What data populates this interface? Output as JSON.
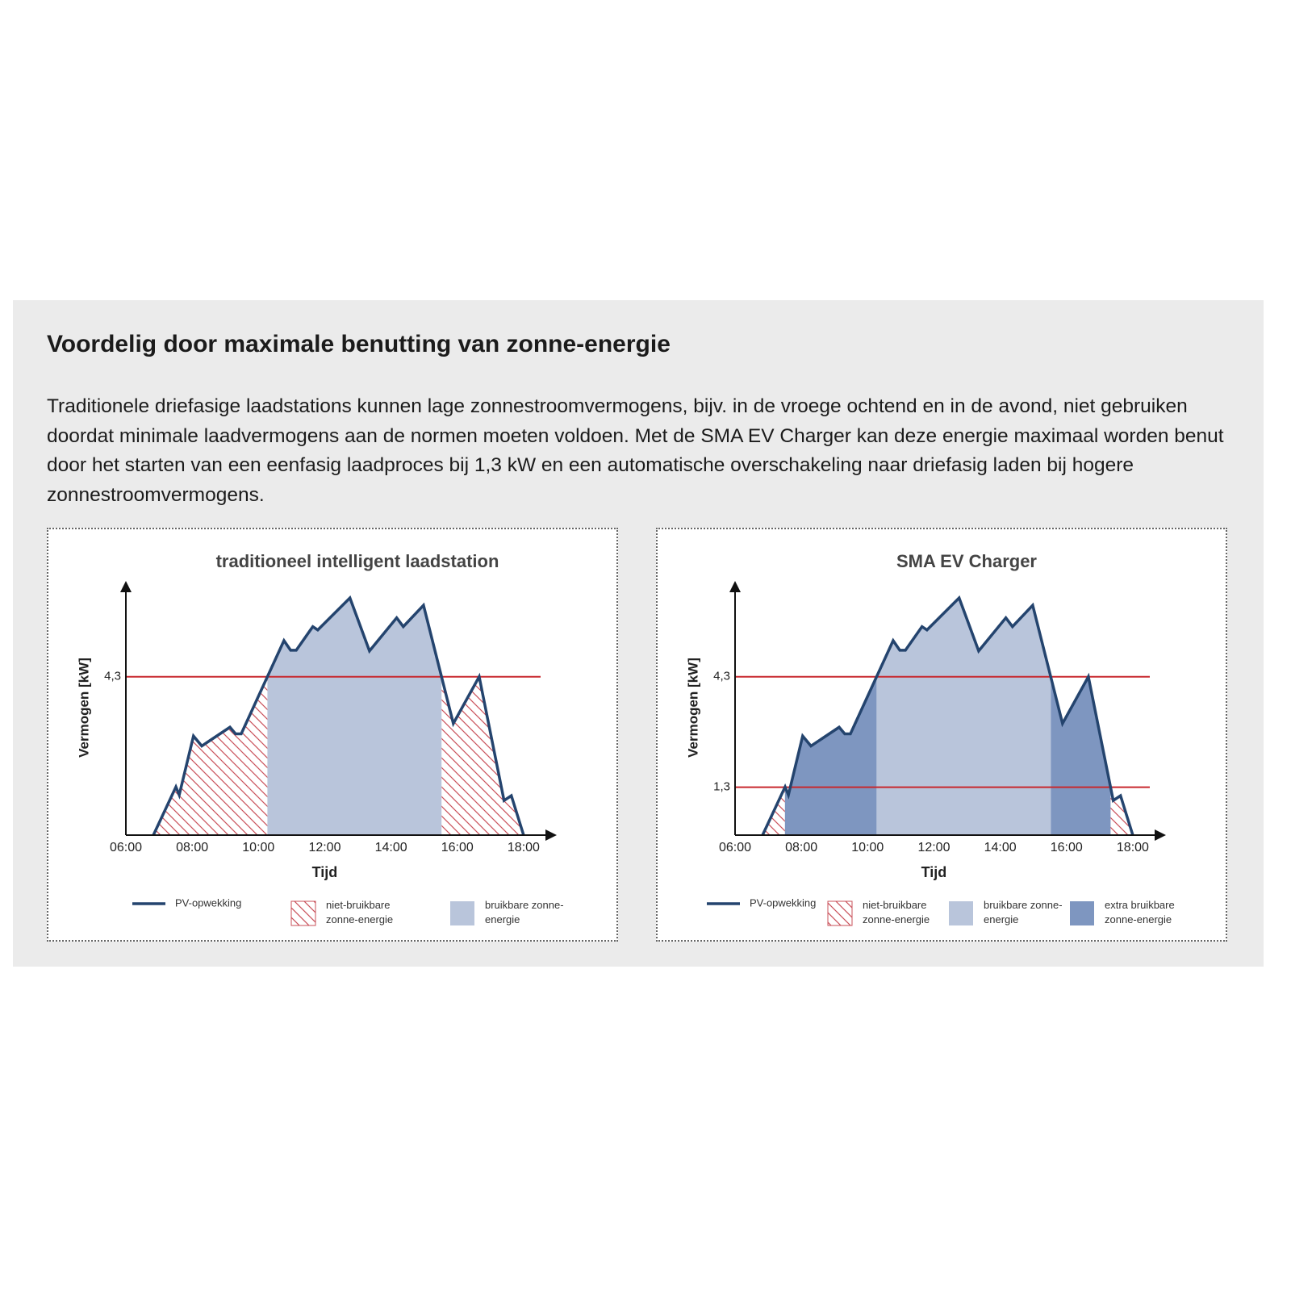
{
  "title": "Voordelig door maximale benutting van zonne-energie",
  "body": "Traditionele driefasige laadstations kunnen lage zonnestroomvermogens, bijv. in de vroege ochtend en in de avond, niet gebruiken doordat minimale laadvermogens aan de normen moeten voldoen. Met de SMA EV Charger kan deze energie maximaal worden benut door het starten van een eenfasig laadproces bij 1,3 kW en een automatische overschakeling naar driefasig laden bij hogere zonnestroomvermogens.",
  "chart_data": [
    {
      "type": "area",
      "title": "traditioneel intelligent laadstation",
      "xlabel": "Tijd",
      "ylabel": "Vermogen [kW]",
      "x": [
        6.83,
        7.51,
        7.61,
        8.04,
        8.29,
        9.14,
        9.31,
        9.48,
        10.77,
        10.97,
        11.14,
        11.64,
        11.79,
        12.76,
        13.35,
        14.17,
        14.37,
        14.98,
        15.88,
        16.66,
        17.41,
        17.63,
        18.0
      ],
      "series": [
        {
          "name": "PV-opwekking",
          "color": "#24446e",
          "values": [
            0,
            1.31,
            1.09,
            2.69,
            2.42,
            2.93,
            2.75,
            2.75,
            5.28,
            5.02,
            5.02,
            5.66,
            5.57,
            6.44,
            5.0,
            5.9,
            5.66,
            6.24,
            3.03,
            4.3,
            0.94,
            1.07,
            0
          ]
        }
      ],
      "areas": [
        {
          "name": "niet-bruikbare zonne-energie",
          "fill": "hatch",
          "color": "#c9505a"
        },
        {
          "name": "bruikbare zonne-energie",
          "fill": "solid",
          "color": "#b9c5db"
        }
      ],
      "threshold_color": "#c8282e",
      "xlim": [
        6,
        19
      ],
      "ylim": [
        0,
        6.9
      ],
      "xticks": [
        {
          "value": 6,
          "label": "06:00"
        },
        {
          "value": 8,
          "label": "08:00"
        },
        {
          "value": 10,
          "label": "10:00"
        },
        {
          "value": 12,
          "label": "12:00"
        },
        {
          "value": 14,
          "label": "14:00"
        },
        {
          "value": 16,
          "label": "16:00"
        },
        {
          "value": 18,
          "label": "18:00"
        }
      ],
      "yticks": [
        {
          "value": 4.3,
          "label": "4,3"
        }
      ]
    },
    {
      "type": "area",
      "title": "SMA EV Charger",
      "xlabel": "Tijd",
      "ylabel": "Vermogen [kW]",
      "x": [
        6.83,
        7.51,
        7.61,
        8.04,
        8.29,
        9.14,
        9.31,
        9.48,
        10.77,
        10.97,
        11.14,
        11.64,
        11.79,
        12.76,
        13.35,
        14.17,
        14.37,
        14.98,
        15.88,
        16.66,
        17.41,
        17.63,
        18.0
      ],
      "series": [
        {
          "name": "PV-opwekking",
          "color": "#24446e",
          "values": [
            0,
            1.31,
            1.09,
            2.69,
            2.42,
            2.93,
            2.75,
            2.75,
            5.28,
            5.02,
            5.02,
            5.66,
            5.57,
            6.44,
            5.0,
            5.9,
            5.66,
            6.24,
            3.03,
            4.3,
            0.94,
            1.07,
            0
          ]
        }
      ],
      "areas": [
        {
          "name": "niet-bruikbare zonne-energie",
          "fill": "hatch",
          "color": "#c9505a"
        },
        {
          "name": "extra bruikbare zonne-energie",
          "fill": "solid",
          "color": "#7e96c0"
        },
        {
          "name": "bruikbare zonne-energie",
          "fill": "solid",
          "color": "#b9c5db"
        }
      ],
      "legend_order": [
        0,
        2,
        1
      ],
      "threshold_color": "#c8282e",
      "xlim": [
        6,
        19
      ],
      "ylim": [
        0,
        6.9
      ],
      "xticks": [
        {
          "value": 6,
          "label": "06:00"
        },
        {
          "value": 8,
          "label": "08:00"
        },
        {
          "value": 10,
          "label": "10:00"
        },
        {
          "value": 12,
          "label": "12:00"
        },
        {
          "value": 14,
          "label": "14:00"
        },
        {
          "value": 16,
          "label": "16:00"
        },
        {
          "value": 18,
          "label": "18:00"
        }
      ],
      "yticks": [
        {
          "value": 1.3,
          "label": "1,3"
        },
        {
          "value": 4.3,
          "label": "4,3"
        }
      ]
    }
  ]
}
